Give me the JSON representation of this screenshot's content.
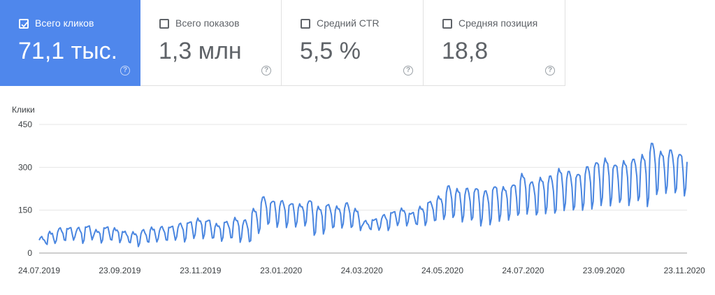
{
  "metrics": [
    {
      "label": "Всего кликов",
      "value": "71,1 тыс.",
      "selected": true
    },
    {
      "label": "Всего показов",
      "value": "1,3 млн",
      "selected": false
    },
    {
      "label": "Средний CTR",
      "value": "5,5 %",
      "selected": false
    },
    {
      "label": "Средняя позиция",
      "value": "18,8",
      "selected": false
    }
  ],
  "help_glyph": "?",
  "colors": {
    "accent": "#4f87ec",
    "line": "#4a86e0",
    "grid": "#e6e6e6",
    "text": "#5f6368"
  },
  "chart_data": {
    "type": "line",
    "ylabel": "Клики",
    "ylim": [
      0,
      450
    ],
    "yticks": [
      0,
      150,
      300,
      450
    ],
    "x_start": "24.07.2019",
    "x_end": "25.11.2020",
    "xtick_labels": [
      "24.07.2019",
      "23.09.2019",
      "23.11.2019",
      "23.01.2020",
      "24.03.2020",
      "24.05.2020",
      "24.07.2020",
      "23.09.2020",
      "23.11.2020"
    ],
    "grid": true,
    "series": [
      {
        "name": "",
        "weekly": [
          {
            "high": 55,
            "low": 30
          },
          {
            "high": 70,
            "low": 35
          },
          {
            "high": 85,
            "low": 40
          },
          {
            "high": 90,
            "low": 45
          },
          {
            "high": 85,
            "low": 40
          },
          {
            "high": 95,
            "low": 45
          },
          {
            "high": 80,
            "low": 40
          },
          {
            "high": 90,
            "low": 45
          },
          {
            "high": 85,
            "low": 40
          },
          {
            "high": 75,
            "low": 35
          },
          {
            "high": 70,
            "low": 25
          },
          {
            "high": 80,
            "low": 35
          },
          {
            "high": 85,
            "low": 40
          },
          {
            "high": 90,
            "low": 40
          },
          {
            "high": 95,
            "low": 45
          },
          {
            "high": 100,
            "low": 45
          },
          {
            "high": 110,
            "low": 50
          },
          {
            "high": 120,
            "low": 55
          },
          {
            "high": 115,
            "low": 50
          },
          {
            "high": 100,
            "low": 45
          },
          {
            "high": 110,
            "low": 50
          },
          {
            "high": 120,
            "low": 40
          },
          {
            "high": 115,
            "low": 35
          },
          {
            "high": 150,
            "low": 70
          },
          {
            "high": 195,
            "low": 95
          },
          {
            "high": 185,
            "low": 90
          },
          {
            "high": 180,
            "low": 95
          },
          {
            "high": 175,
            "low": 90
          },
          {
            "high": 170,
            "low": 100
          },
          {
            "high": 185,
            "low": 60
          },
          {
            "high": 160,
            "low": 70
          },
          {
            "high": 170,
            "low": 85
          },
          {
            "high": 160,
            "low": 90
          },
          {
            "high": 175,
            "low": 85
          },
          {
            "high": 150,
            "low": 80
          },
          {
            "high": 110,
            "low": 80
          },
          {
            "high": 120,
            "low": 80
          },
          {
            "high": 130,
            "low": 85
          },
          {
            "high": 145,
            "low": 95
          },
          {
            "high": 155,
            "low": 100
          },
          {
            "high": 140,
            "low": 100
          },
          {
            "high": 160,
            "low": 100
          },
          {
            "high": 180,
            "low": 110
          },
          {
            "high": 195,
            "low": 120
          },
          {
            "high": 235,
            "low": 120
          },
          {
            "high": 220,
            "low": 110
          },
          {
            "high": 225,
            "low": 110
          },
          {
            "high": 230,
            "low": 95
          },
          {
            "high": 215,
            "low": 105
          },
          {
            "high": 235,
            "low": 110
          },
          {
            "high": 230,
            "low": 120
          },
          {
            "high": 240,
            "low": 130
          },
          {
            "high": 275,
            "low": 140
          },
          {
            "high": 250,
            "low": 130
          },
          {
            "high": 260,
            "low": 140
          },
          {
            "high": 270,
            "low": 135
          },
          {
            "high": 290,
            "low": 150
          },
          {
            "high": 285,
            "low": 145
          },
          {
            "high": 280,
            "low": 150
          },
          {
            "high": 300,
            "low": 160
          },
          {
            "high": 320,
            "low": 165
          },
          {
            "high": 330,
            "low": 170
          },
          {
            "high": 310,
            "low": 175
          },
          {
            "high": 320,
            "low": 170
          },
          {
            "high": 330,
            "low": 180
          },
          {
            "high": 340,
            "low": 165
          },
          {
            "high": 385,
            "low": 200
          },
          {
            "high": 350,
            "low": 210
          },
          {
            "high": 360,
            "low": 205
          },
          {
            "high": 350,
            "low": 200
          },
          {
            "high": 345,
            "low": 195
          },
          {
            "high": 330,
            "low": 290
          }
        ]
      }
    ]
  }
}
